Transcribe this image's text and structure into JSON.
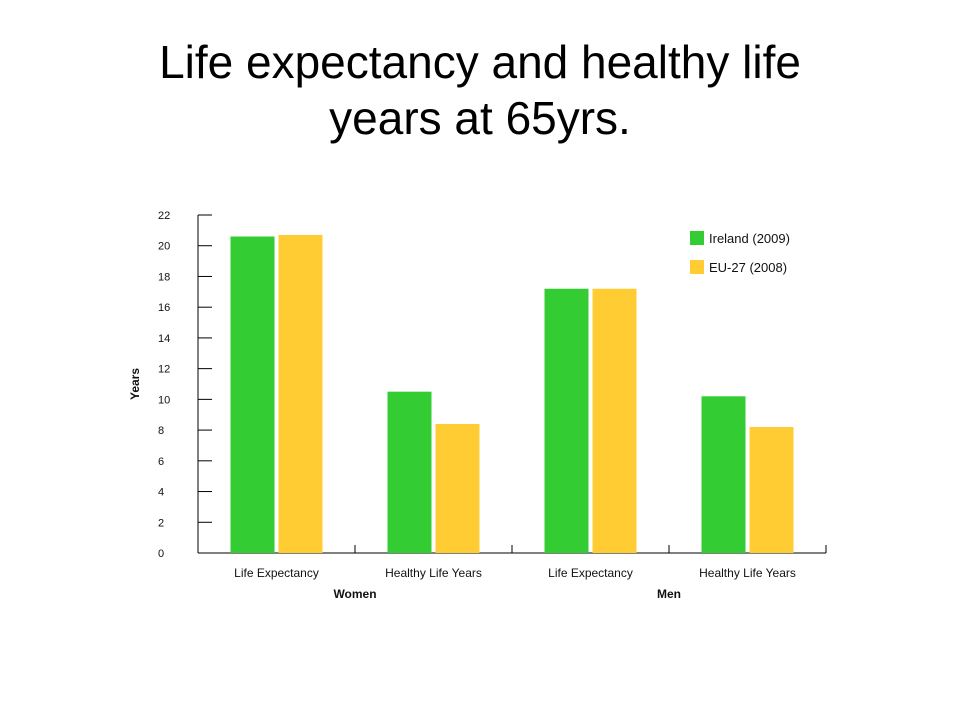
{
  "slide": {
    "title_line1": "Life expectancy and healthy life",
    "title_line2": "years at 65yrs."
  },
  "chart_data": {
    "type": "bar",
    "title": "",
    "xlabel": "",
    "ylabel": "Years",
    "ylim": [
      0,
      22
    ],
    "yticks": [
      0,
      2,
      4,
      6,
      8,
      10,
      12,
      14,
      16,
      18,
      20,
      22
    ],
    "groups": [
      "Women",
      "Men"
    ],
    "categories": [
      "Life Expectancy",
      "Healthy Life Years",
      "Life Expectancy",
      "Healthy Life Years"
    ],
    "category_groups": [
      "Women",
      "Women",
      "Men",
      "Men"
    ],
    "series": [
      {
        "name": "Ireland (2009)",
        "color": "#33cc33",
        "values": [
          20.6,
          10.5,
          17.2,
          10.2
        ]
      },
      {
        "name": "EU-27 (2008)",
        "color": "#ffcc33",
        "values": [
          20.7,
          8.4,
          17.2,
          8.2
        ]
      }
    ],
    "grid": false,
    "legend_position": "top-right",
    "axis_color": "#000000"
  }
}
